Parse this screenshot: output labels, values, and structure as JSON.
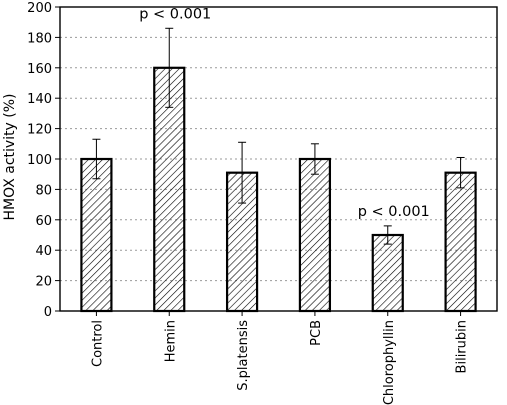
{
  "chart_data": {
    "type": "bar",
    "ylabel": "HMOX activity  (%)",
    "ylim": [
      0,
      200
    ],
    "yticks": [
      0,
      20,
      40,
      60,
      80,
      100,
      120,
      140,
      160,
      180,
      200
    ],
    "grid": "horizontal dotted",
    "categories": [
      "Control",
      "Hemin",
      "S.platensis",
      "PCB",
      "Chlorophyllin",
      "Bilirubin"
    ],
    "values": [
      100,
      160,
      91,
      100,
      50,
      91
    ],
    "error": [
      13,
      26,
      20,
      10,
      6,
      10
    ],
    "fill": "diagonal-hatch",
    "colors": {
      "bar_stroke": "#000000",
      "hatch": "#000000",
      "grid": "#9a9a9a"
    },
    "annotations": [
      {
        "category": "Hemin",
        "text": "p < 0.001"
      },
      {
        "category": "Chlorophyllin",
        "text": "p < 0.001"
      }
    ]
  }
}
